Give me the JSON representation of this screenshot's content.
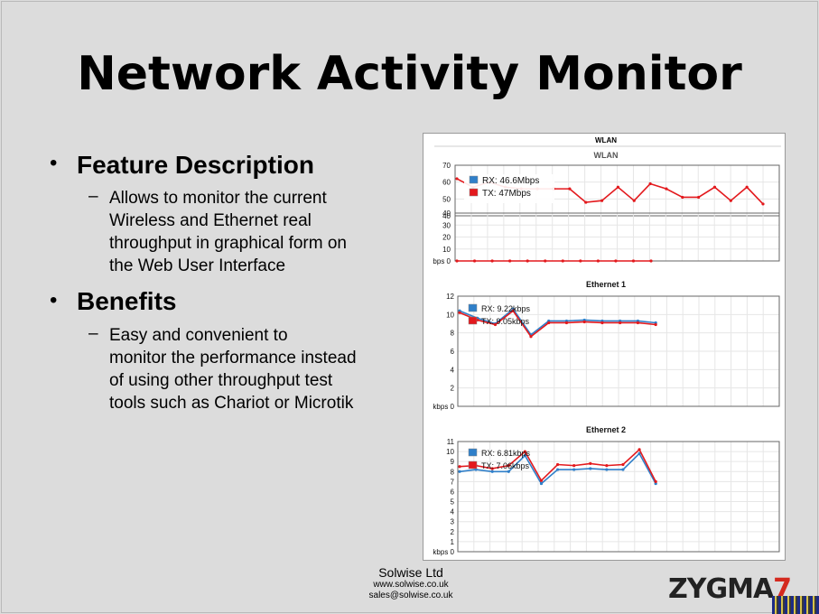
{
  "slide": {
    "title": "Network Activity Monitor",
    "sections": [
      {
        "heading": "Feature Description",
        "lines": [
          "Allows to monitor the current",
          "Wireless and Ethernet real",
          "throughput  in graphical form on",
          "the Web User Interface"
        ]
      },
      {
        "heading": "Benefits",
        "lines": [
          "Easy and convenient to",
          "monitor the performance instead",
          "of using other throughput test",
          "tools such as Chariot or Microtik"
        ]
      }
    ],
    "footer": {
      "company": "Solwise Ltd",
      "website": "www.solwise.co.uk",
      "email": "sales@solwise.co.uk"
    },
    "logo": {
      "text": "ZYGMA",
      "mark": "7"
    },
    "colors": {
      "rx": "#2f7fc9",
      "tx": "#e3191d",
      "background": "#dcdcdc"
    }
  },
  "chart_data": [
    {
      "type": "line",
      "window_title": "WLAN",
      "title": "WLAN",
      "ylabel": "bps",
      "ylim": [
        0,
        70
      ],
      "y_ticks_lower": [
        "bps 0",
        "10",
        "20",
        "30",
        "40"
      ],
      "y_ticks_upper": [
        "40",
        "50",
        "60",
        "70"
      ],
      "legend": [
        {
          "name": "RX: 46.6Mbps"
        },
        {
          "name": "TX: 47Mbps"
        }
      ],
      "series": [
        {
          "name": "upper",
          "values": [
            62,
            57,
            60,
            57,
            56,
            56,
            56,
            56,
            48,
            49,
            57,
            49,
            59,
            56,
            51,
            51,
            57,
            49,
            57,
            47
          ]
        },
        {
          "name": "baseline",
          "values": [
            0,
            0,
            0,
            0,
            0,
            0,
            0,
            0,
            0,
            0,
            0,
            0
          ]
        }
      ]
    },
    {
      "type": "line",
      "title": "Ethernet 1",
      "ylabel": "kbps",
      "ylim": [
        0,
        12
      ],
      "y_ticks": [
        "kbps 0",
        "2",
        "4",
        "6",
        "8",
        "10",
        "12"
      ],
      "legend": [
        {
          "name": "RX: 9.22kbps"
        },
        {
          "name": "TX: 9.05kbps"
        }
      ],
      "series": [
        {
          "name": "RX",
          "values": [
            10.4,
            9.6,
            9.0,
            10.6,
            7.8,
            9.3,
            9.3,
            9.4,
            9.3,
            9.3,
            9.3,
            9.1
          ]
        },
        {
          "name": "TX",
          "values": [
            10.2,
            9.4,
            8.9,
            10.4,
            7.6,
            9.1,
            9.1,
            9.2,
            9.1,
            9.1,
            9.1,
            8.9
          ]
        }
      ]
    },
    {
      "type": "line",
      "title": "Ethernet 2",
      "ylabel": "kbps",
      "ylim": [
        0,
        11
      ],
      "y_ticks": [
        "kbps 0",
        "1",
        "2",
        "3",
        "4",
        "5",
        "6",
        "7",
        "8",
        "9",
        "10",
        "11"
      ],
      "legend": [
        {
          "name": "RX: 6.81kbps"
        },
        {
          "name": "TX: 7.06kbps"
        }
      ],
      "series": [
        {
          "name": "RX",
          "values": [
            8.0,
            8.2,
            8.0,
            8.0,
            9.6,
            6.8,
            8.2,
            8.2,
            8.3,
            8.2,
            8.2,
            9.8,
            6.8
          ]
        },
        {
          "name": "TX",
          "values": [
            8.5,
            8.6,
            8.3,
            8.6,
            10.0,
            7.1,
            8.7,
            8.6,
            8.8,
            8.6,
            8.7,
            10.2,
            7.0
          ]
        }
      ]
    }
  ]
}
